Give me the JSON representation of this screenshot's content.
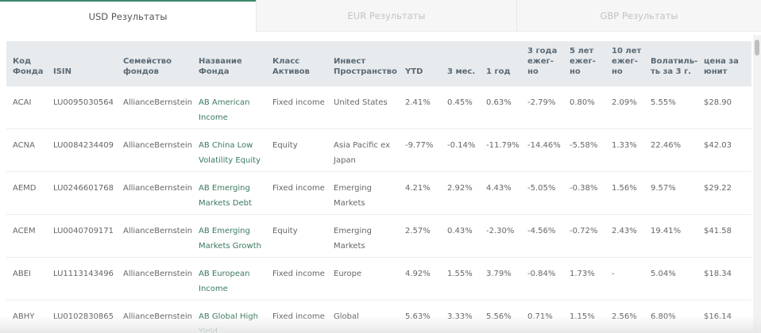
{
  "tabs": [
    {
      "label": "USD Результаты",
      "active": true
    },
    {
      "label": "EUR Результаты",
      "active": false
    },
    {
      "label": "GBP Результаты",
      "active": false
    }
  ],
  "table": {
    "headers": [
      "Код Фонда",
      "ISIN",
      "Семейство фондов",
      "Название Фонда",
      "Класс Активов",
      "Инвест Пространство",
      "YTD",
      "3 мес.",
      "1 год",
      "3 года ежег-но",
      "5 лет ежег-но",
      "10 лет ежег-но",
      "Волатиль-ть за 3 г.",
      "цена за юнит"
    ],
    "rows": [
      [
        "ACAI",
        "LU0095030564",
        "AllianceBernstein",
        "AB American Income",
        "Fixed income",
        "United States",
        "2.41%",
        "0.45%",
        "0.63%",
        "-2.79%",
        "0.80%",
        "2.09%",
        "5.55%",
        "$28.90"
      ],
      [
        "ACNA",
        "LU0084234409",
        "AllianceBernstein",
        "AB China Low Volatility Equity",
        "Equity",
        "Asia Pacific ex Japan",
        "-9.77%",
        "-0.14%",
        "-11.79%",
        "-14.46%",
        "-5.58%",
        "1.33%",
        "22.46%",
        "$42.03"
      ],
      [
        "AEMD",
        "LU0246601768",
        "AllianceBernstein",
        "AB Emerging Markets Debt",
        "Fixed income",
        "Emerging Markets",
        "4.21%",
        "2.92%",
        "4.43%",
        "-5.05%",
        "-0.38%",
        "1.56%",
        "9.57%",
        "$29.22"
      ],
      [
        "ACEM",
        "LU0040709171",
        "AllianceBernstein",
        "AB Emerging Markets Growth",
        "Equity",
        "Emerging Markets",
        "2.57%",
        "0.43%",
        "-2.30%",
        "-4.56%",
        "-0.72%",
        "2.43%",
        "19.41%",
        "$41.58"
      ],
      [
        "ABEI",
        "LU1113143496",
        "AllianceBernstein",
        "AB European Income",
        "Fixed income",
        "Europe",
        "4.92%",
        "1.55%",
        "3.79%",
        "-0.84%",
        "1.73%",
        "-",
        "5.04%",
        "$18.34"
      ],
      [
        "ABHY",
        "LU0102830865",
        "AllianceBernstein",
        "AB Global High Yield",
        "Fixed income",
        "Global",
        "5.63%",
        "3.33%",
        "5.56%",
        "0.71%",
        "1.15%",
        "2.56%",
        "6.80%",
        "$16.14"
      ]
    ]
  }
}
